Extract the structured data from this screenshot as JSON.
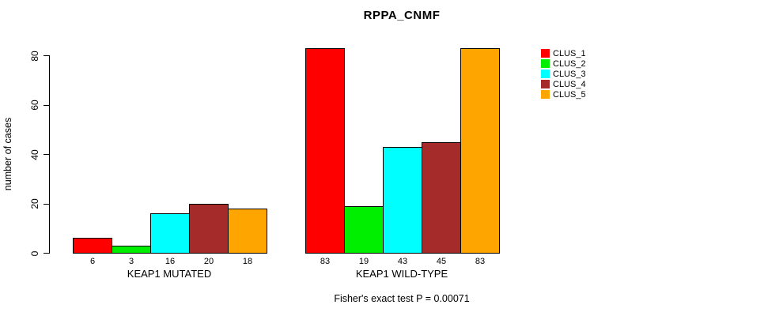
{
  "chart_data": {
    "type": "bar",
    "title": "RPPA_CNMF",
    "ylabel": "number of cases",
    "xlabel": "",
    "ylim": [
      0,
      80
    ],
    "yticks": [
      0,
      20,
      40,
      60,
      80
    ],
    "grid": false,
    "legend_position": "right-outside",
    "categories": [
      "KEAP1 MUTATED",
      "KEAP1 WILD-TYPE"
    ],
    "groups": [
      {
        "label": "KEAP1 MUTATED",
        "values": [
          6,
          3,
          16,
          20,
          18
        ]
      },
      {
        "label": "KEAP1 WILD-TYPE",
        "values": [
          83,
          19,
          43,
          45,
          83
        ]
      }
    ],
    "series": [
      {
        "name": "CLUS_1",
        "color": "#FF0000"
      },
      {
        "name": "CLUS_2",
        "color": "#00EE00"
      },
      {
        "name": "CLUS_3",
        "color": "#00FFFF"
      },
      {
        "name": "CLUS_4",
        "color": "#A52A2A"
      },
      {
        "name": "CLUS_5",
        "color": "#FFA500"
      }
    ],
    "bar_value_labels": [
      [
        "6",
        "3",
        "16",
        "20",
        "18"
      ],
      [
        "83",
        "19",
        "43",
        "45",
        "83"
      ]
    ],
    "footnote": "Fisher's exact test P = 0.00071"
  },
  "colors": {
    "background": "#FFFFFF",
    "axis": "#000000",
    "bar_border": "#000000",
    "text": "#000000"
  }
}
